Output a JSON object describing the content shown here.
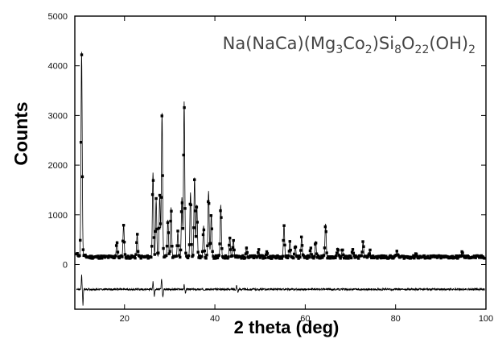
{
  "chart_data": {
    "type": "scatter",
    "xlabel": "2 theta (deg)",
    "ylabel": "Counts",
    "xlim": [
      9,
      100
    ],
    "ylim": [
      -900,
      5000
    ],
    "x_ticks": [
      20,
      40,
      60,
      80,
      100
    ],
    "y_ticks": [
      0,
      1000,
      2000,
      3000,
      4000,
      5000
    ],
    "annotation": {
      "parts": [
        {
          "t": "Na(NaCa)(Mg"
        },
        {
          "t": "3",
          "sub": true
        },
        {
          "t": "Co"
        },
        {
          "t": "2",
          "sub": true
        },
        {
          "t": ")Si"
        },
        {
          "t": "8",
          "sub": true
        },
        {
          "t": "O"
        },
        {
          "t": "22",
          "sub": true
        },
        {
          "t": "(OH)"
        },
        {
          "t": "2",
          "sub": true
        }
      ]
    },
    "baseline": 150,
    "peaks": [
      {
        "x": 10.5,
        "y": 4250
      },
      {
        "x": 18.3,
        "y": 470
      },
      {
        "x": 19.8,
        "y": 810
      },
      {
        "x": 22.8,
        "y": 600
      },
      {
        "x": 26.3,
        "y": 1850
      },
      {
        "x": 27.0,
        "y": 1300
      },
      {
        "x": 27.8,
        "y": 1400
      },
      {
        "x": 28.3,
        "y": 3050
      },
      {
        "x": 29.6,
        "y": 900
      },
      {
        "x": 30.3,
        "y": 1150
      },
      {
        "x": 31.8,
        "y": 650
      },
      {
        "x": 32.7,
        "y": 1350
      },
      {
        "x": 33.2,
        "y": 3280
      },
      {
        "x": 34.6,
        "y": 1450
      },
      {
        "x": 35.5,
        "y": 1750
      },
      {
        "x": 36.0,
        "y": 1200
      },
      {
        "x": 37.5,
        "y": 780
      },
      {
        "x": 38.6,
        "y": 1480
      },
      {
        "x": 39.2,
        "y": 1000
      },
      {
        "x": 41.3,
        "y": 1200
      },
      {
        "x": 43.3,
        "y": 560
      },
      {
        "x": 44.1,
        "y": 500
      },
      {
        "x": 47.0,
        "y": 350
      },
      {
        "x": 49.7,
        "y": 300
      },
      {
        "x": 51.5,
        "y": 250
      },
      {
        "x": 55.3,
        "y": 800
      },
      {
        "x": 56.6,
        "y": 450
      },
      {
        "x": 57.8,
        "y": 380
      },
      {
        "x": 59.2,
        "y": 550
      },
      {
        "x": 61.2,
        "y": 320
      },
      {
        "x": 62.3,
        "y": 470
      },
      {
        "x": 64.5,
        "y": 820
      },
      {
        "x": 67.2,
        "y": 330
      },
      {
        "x": 68.2,
        "y": 300
      },
      {
        "x": 70.5,
        "y": 290
      },
      {
        "x": 72.8,
        "y": 460
      },
      {
        "x": 74.3,
        "y": 280
      },
      {
        "x": 80.3,
        "y": 270
      },
      {
        "x": 84.5,
        "y": 230
      },
      {
        "x": 94.7,
        "y": 270
      }
    ],
    "difference_curve": {
      "offset": -500,
      "features": [
        {
          "x": 10.5,
          "y": 300
        },
        {
          "x": 10.8,
          "y": -320
        },
        {
          "x": 26.3,
          "y": 150
        },
        {
          "x": 26.6,
          "y": -130
        },
        {
          "x": 28.2,
          "y": 220
        },
        {
          "x": 28.5,
          "y": -160
        },
        {
          "x": 33.2,
          "y": 90
        },
        {
          "x": 33.5,
          "y": -80
        },
        {
          "x": 44.8,
          "y": 80
        },
        {
          "x": 45.1,
          "y": -60
        }
      ]
    }
  }
}
